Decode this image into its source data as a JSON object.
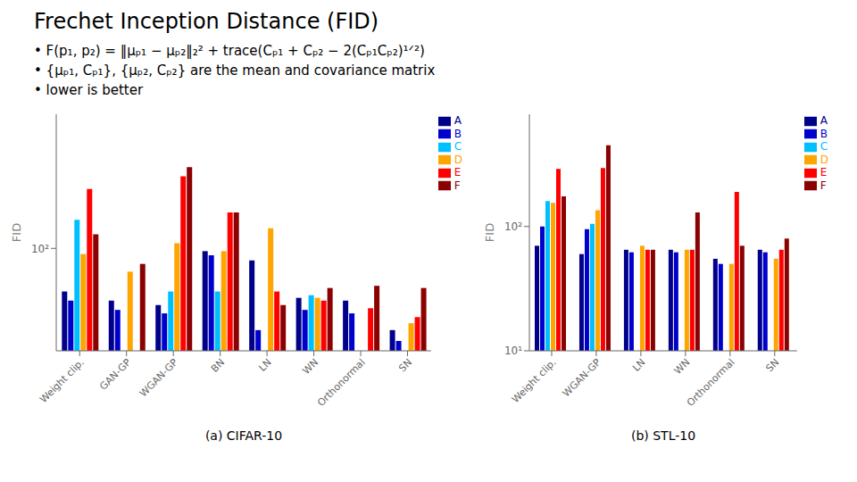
{
  "title": "Frechet Inception Distance (FID)",
  "annotations": [
    "•  F(p₁, p₂) = ‖μₚ₁ − μₚ₂‖₂² + trace(Cₚ₁ + Cₚ₂ − 2(Cₚ₁Cₚ₂)¹ᐟ²)",
    "•  {μₚ₁, Cₚ₁}, {μₚ₂, Cₚ₂}  are the mean and covariance matrix",
    "•  lower is better"
  ],
  "chart_data": [
    {
      "type": "bar",
      "title": "(a)  CIFAR-10",
      "y_label": "FID",
      "categories": [
        "Weight clip.",
        "GAN-GP",
        "WGAN-GP",
        "BN",
        "LN",
        "WN",
        "Orthonormal",
        "SN"
      ],
      "series": [
        {
          "name": "A",
          "color": "#00008B",
          "values": [
            45,
            38,
            35,
            95,
            80,
            40,
            38,
            22
          ]
        },
        {
          "name": "B",
          "color": "#0000CD",
          "values": [
            38,
            32,
            30,
            88,
            22,
            32,
            30,
            18
          ]
        },
        {
          "name": "C",
          "color": "#00BFFF",
          "values": [
            170,
            null,
            45,
            45,
            null,
            42,
            null,
            null
          ]
        },
        {
          "name": "D",
          "color": "#FFA500",
          "values": [
            90,
            65,
            110,
            95,
            145,
            40,
            15,
            25
          ]
        },
        {
          "name": "E",
          "color": "#FF0000",
          "values": [
            300,
            null,
            380,
            195,
            45,
            38,
            33,
            28
          ]
        },
        {
          "name": "F",
          "color": "#8B0000",
          "values": [
            130,
            75,
            450,
            195,
            35,
            48,
            50,
            48
          ]
        }
      ],
      "log": "y",
      "ylim": [
        15,
        1200
      ],
      "yticks": [
        {
          "value": 100,
          "label": "10²"
        }
      ],
      "grid": false,
      "legend": "upper right"
    },
    {
      "type": "bar",
      "title": "(b)  STL-10",
      "y_label": "FID",
      "categories": [
        "Weight clip.",
        "WGAN-GP",
        "LN",
        "WN",
        "Orthonormal",
        "SN"
      ],
      "series": [
        {
          "name": "A",
          "color": "#00008B",
          "values": [
            70,
            60,
            65,
            65,
            55,
            65
          ]
        },
        {
          "name": "B",
          "color": "#0000CD",
          "values": [
            100,
            95,
            62,
            62,
            50,
            62
          ]
        },
        {
          "name": "C",
          "color": "#00BFFF",
          "values": [
            160,
            105,
            null,
            null,
            null,
            null
          ]
        },
        {
          "name": "D",
          "color": "#FFA500",
          "values": [
            155,
            135,
            70,
            65,
            50,
            55
          ]
        },
        {
          "name": "E",
          "color": "#FF0000",
          "values": [
            290,
            295,
            65,
            65,
            190,
            65
          ]
        },
        {
          "name": "F",
          "color": "#8B0000",
          "values": [
            175,
            450,
            65,
            130,
            70,
            80
          ]
        }
      ],
      "log": "y",
      "ylim": [
        10,
        800
      ],
      "yticks": [
        {
          "value": 10,
          "label": "10¹"
        },
        {
          "value": 100,
          "label": "10²"
        }
      ],
      "grid": false,
      "legend": "upper right"
    }
  ]
}
